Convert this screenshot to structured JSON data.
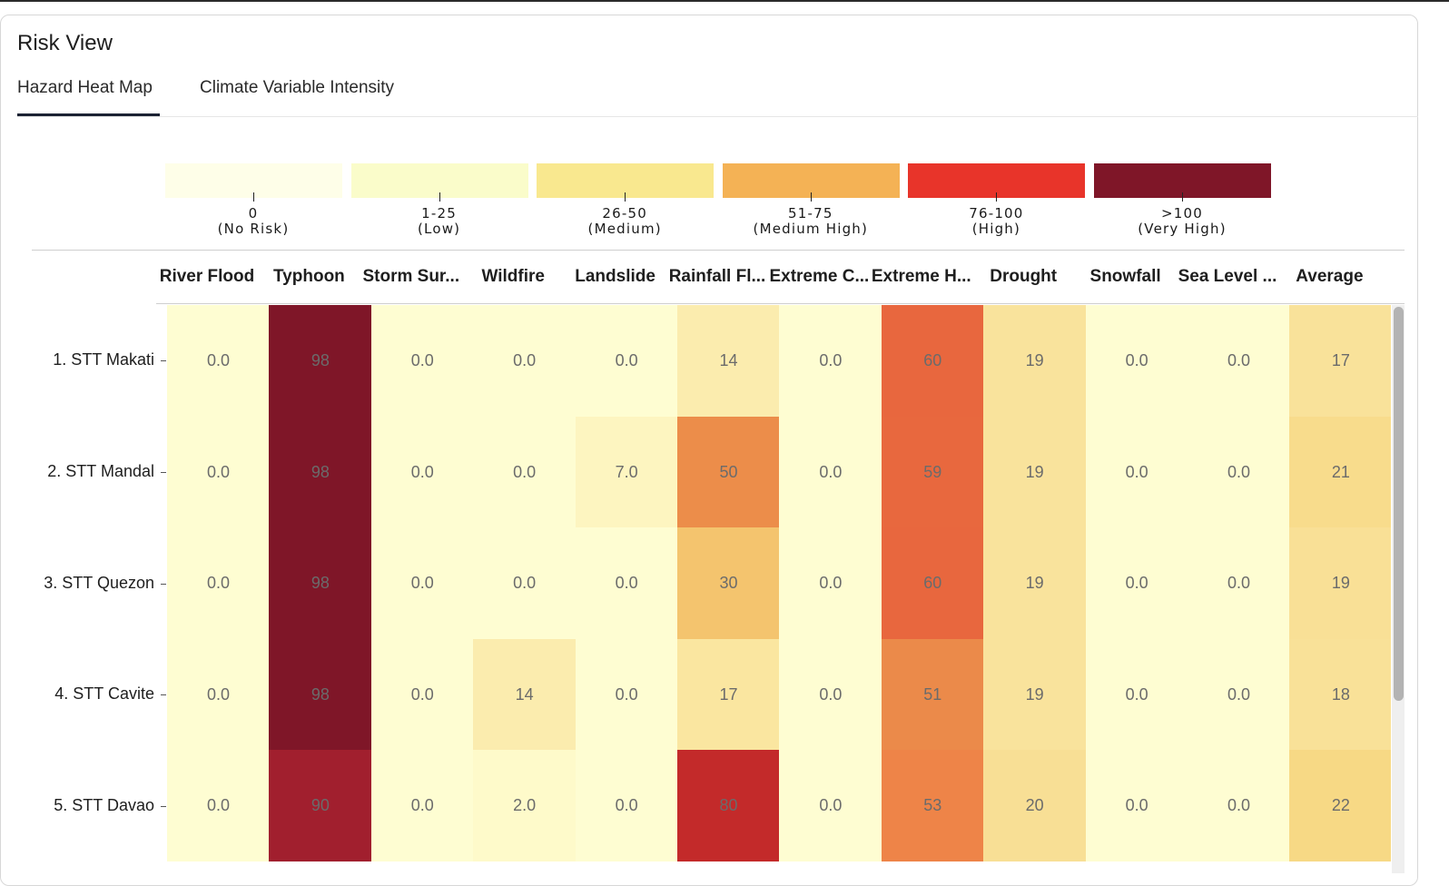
{
  "page": {
    "title": "Risk View"
  },
  "tabs": [
    {
      "label": "Hazard Heat Map",
      "active": true
    },
    {
      "label": "Climate Variable Intensity",
      "active": false
    }
  ],
  "legend": [
    {
      "range": "0",
      "name": "(No Risk)",
      "color": "#fefee8"
    },
    {
      "range": "1-25",
      "name": "(Low)",
      "color": "#fafcca"
    },
    {
      "range": "26-50",
      "name": "(Medium)",
      "color": "#f9e88f"
    },
    {
      "range": "51-75",
      "name": "(Medium High)",
      "color": "#f4b255"
    },
    {
      "range": "76-100",
      "name": "(High)",
      "color": "#e8342a"
    },
    {
      "range": ">100",
      "name": "(Very High)",
      "color": "#7f1628"
    }
  ],
  "chart_data": {
    "type": "heatmap",
    "columns": [
      "River Flood",
      "Typhoon",
      "Storm Sur...",
      "Wildfire",
      "Landslide",
      "Rainfall Fl...",
      "Extreme C...",
      "Extreme H...",
      "Drought",
      "Snowfall",
      "Sea Level ...",
      "Average"
    ],
    "rows": [
      "1. STT Makati",
      "2. STT Mandal",
      "3. STT Quezon",
      "4. STT Cavite",
      "5. STT Davao"
    ],
    "display": [
      [
        "0.0",
        "98",
        "0.0",
        "0.0",
        "0.0",
        "14",
        "0.0",
        "60",
        "19",
        "0.0",
        "0.0",
        "17"
      ],
      [
        "0.0",
        "98",
        "0.0",
        "0.0",
        "7.0",
        "50",
        "0.0",
        "59",
        "19",
        "0.0",
        "0.0",
        "21"
      ],
      [
        "0.0",
        "98",
        "0.0",
        "0.0",
        "0.0",
        "30",
        "0.0",
        "60",
        "19",
        "0.0",
        "0.0",
        "19"
      ],
      [
        "0.0",
        "98",
        "0.0",
        "14",
        "0.0",
        "17",
        "0.0",
        "51",
        "19",
        "0.0",
        "0.0",
        "18"
      ],
      [
        "0.0",
        "90",
        "0.0",
        "2.0",
        "0.0",
        "80",
        "0.0",
        "53",
        "20",
        "0.0",
        "0.0",
        "22"
      ]
    ],
    "values": [
      [
        0,
        98,
        0,
        0,
        0,
        14,
        0,
        60,
        19,
        0,
        0,
        17
      ],
      [
        0,
        98,
        0,
        0,
        7,
        50,
        0,
        59,
        19,
        0,
        0,
        21
      ],
      [
        0,
        98,
        0,
        0,
        0,
        30,
        0,
        60,
        19,
        0,
        0,
        19
      ],
      [
        0,
        98,
        0,
        14,
        0,
        17,
        0,
        51,
        19,
        0,
        0,
        18
      ],
      [
        0,
        90,
        0,
        2,
        0,
        80,
        0,
        53,
        20,
        0,
        0,
        22
      ]
    ],
    "colors": [
      [
        "#fefdd2",
        "#7f1628",
        "#fefdd2",
        "#fefdd2",
        "#fefdd2",
        "#fbecae",
        "#fefdd2",
        "#e8673e",
        "#f9e39c",
        "#fefdd2",
        "#fefdd2",
        "#f9e29a"
      ],
      [
        "#fefdd2",
        "#7f1628",
        "#fefdd2",
        "#fefdd2",
        "#fdf5c0",
        "#ec8d4a",
        "#fefdd2",
        "#e8683e",
        "#f9e39c",
        "#fefdd2",
        "#fefdd2",
        "#f8dc8c"
      ],
      [
        "#fefdd2",
        "#7f1628",
        "#fefdd2",
        "#fefdd2",
        "#fefdd2",
        "#f4c46e",
        "#fefdd2",
        "#e8673e",
        "#f9e39c",
        "#fefdd2",
        "#fefdd2",
        "#f9e096"
      ],
      [
        "#fefdd2",
        "#7f1628",
        "#fefdd2",
        "#fbecae",
        "#fefdd2",
        "#fae6a0",
        "#fefdd2",
        "#eb8a4a",
        "#f9e39c",
        "#fefdd2",
        "#fefdd2",
        "#f9e198"
      ],
      [
        "#fefdd2",
        "#a11f2e",
        "#fefdd2",
        "#fefaca",
        "#fefdd2",
        "#c32a2a",
        "#fefdd2",
        "#ee8448",
        "#f8df95",
        "#fefdd2",
        "#fefdd2",
        "#f7d985"
      ]
    ]
  }
}
